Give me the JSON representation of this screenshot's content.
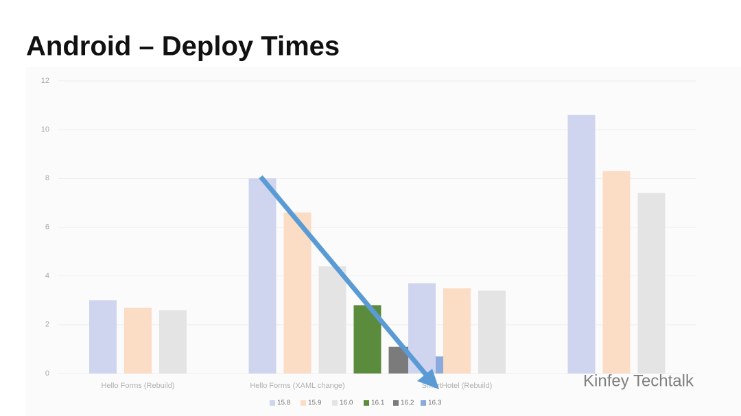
{
  "chart_data": {
    "type": "bar",
    "title": "Android – Deploy Times",
    "categories": [
      "Hello Forms (Rebuild)",
      "Hello Forms (XAML change)",
      "SmartHotel (Rebuild)",
      null
    ],
    "series": [
      {
        "name": "15.8",
        "color": "#cfd5ee",
        "values": [
          3.0,
          8.0,
          3.7,
          10.6
        ]
      },
      {
        "name": "15.9",
        "color": "#fbdcc4",
        "values": [
          2.7,
          6.6,
          3.5,
          8.3
        ]
      },
      {
        "name": "16.0",
        "color": "#e4e4e4",
        "values": [
          2.6,
          4.4,
          3.4,
          7.4
        ]
      },
      {
        "name": "16.1",
        "color": "#5b8c3e",
        "values": [
          null,
          2.8,
          null,
          null
        ]
      },
      {
        "name": "16.2",
        "color": "#7b7b7b",
        "values": [
          null,
          1.1,
          null,
          null
        ]
      },
      {
        "name": "16.3",
        "color": "#8aa9dc",
        "values": [
          null,
          0.7,
          null,
          null
        ]
      }
    ],
    "ylim": [
      0,
      12
    ],
    "yticks": [
      0,
      2,
      4,
      6,
      8,
      10,
      12
    ],
    "grid": true,
    "legend": "bottom",
    "watermark": "Kinfey Techtalk"
  }
}
